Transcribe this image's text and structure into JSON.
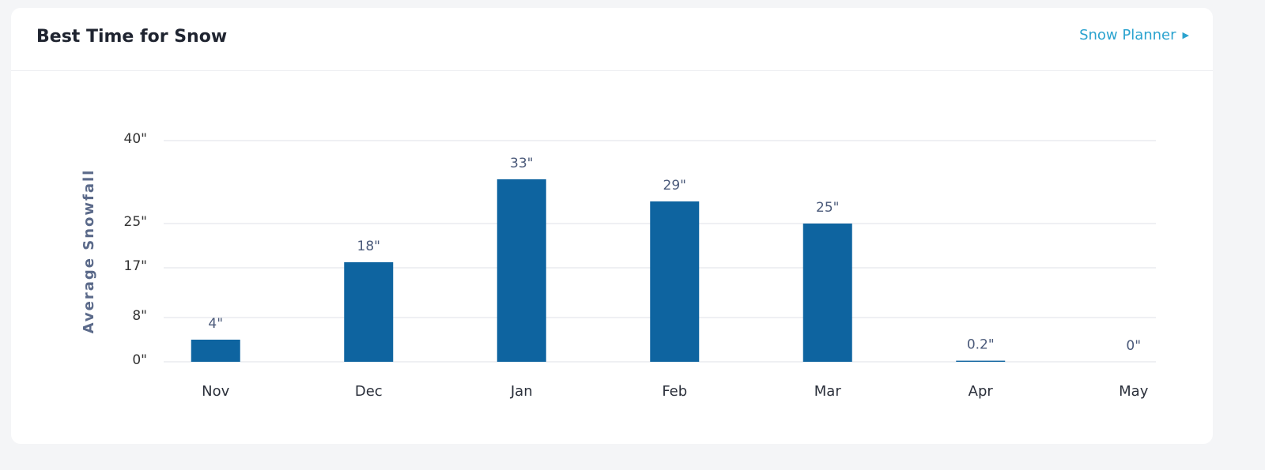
{
  "header": {
    "title": "Best Time for Snow",
    "link": "Snow Planner"
  },
  "chart_data": {
    "type": "bar",
    "y_label": "Average Snowfall",
    "categories": [
      "Nov",
      "Dec",
      "Jan",
      "Feb",
      "Mar",
      "Apr",
      "May"
    ],
    "values": [
      4,
      18,
      33,
      29,
      25,
      0.2,
      0
    ],
    "value_labels": [
      "4\"",
      "18\"",
      "33\"",
      "29\"",
      "25\"",
      "0.2\"",
      "0\""
    ],
    "color": "#0e64a0",
    "ylim": [
      0,
      40
    ],
    "yticks": [
      {
        "value": 0,
        "label": "0\""
      },
      {
        "value": 8,
        "label": "8\""
      },
      {
        "value": 17,
        "label": "17\""
      },
      {
        "value": 25,
        "label": "25\""
      },
      {
        "value": 40,
        "label": "40\""
      }
    ],
    "grid": true
  }
}
